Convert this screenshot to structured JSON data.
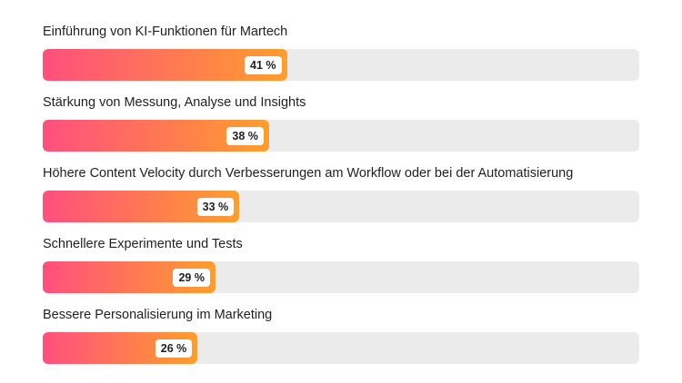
{
  "chart_data": {
    "type": "bar",
    "orientation": "horizontal",
    "categories": [
      "Einführung von KI-Funktionen für Martech",
      "Stärkung von Messung, Analyse und Insights",
      "Höhere Content Velocity durch Verbesserungen am Workflow oder bei der Automatisierung",
      "Schnellere Experimente und Tests",
      "Bessere Personalisierung im Marketing"
    ],
    "values": [
      41,
      38,
      33,
      29,
      26
    ],
    "value_labels": [
      "41 %",
      "38 %",
      "33 %",
      "29 %",
      "26 %"
    ],
    "xlim": [
      0,
      100
    ],
    "grid": false,
    "colors": {
      "bar_start": "#ff4f7e",
      "bar_end": "#ff9e2c",
      "track": "#ebebeb",
      "label_badge": "#ffffff"
    }
  }
}
